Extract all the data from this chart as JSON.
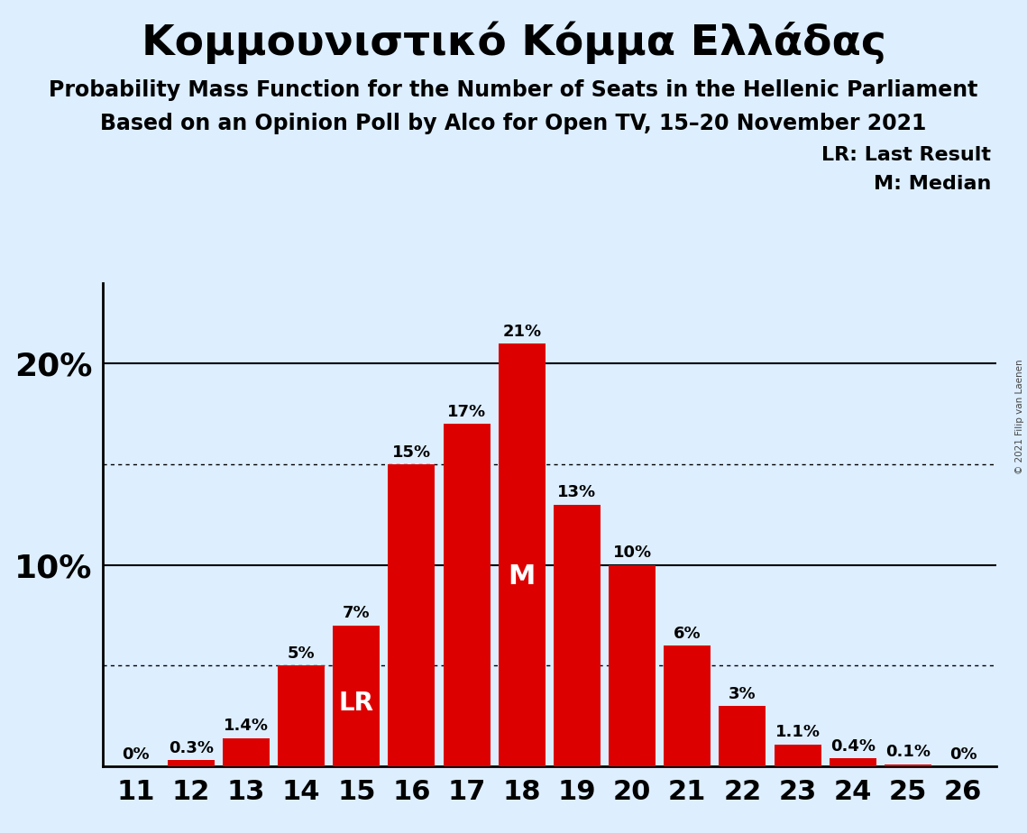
{
  "title": "Κομμουνιστικό Κόμμα Ελλάδας",
  "subtitle1": "Probability Mass Function for the Number of Seats in the Hellenic Parliament",
  "subtitle2": "Based on an Opinion Poll by Alco for Open TV, 15–20 November 2021",
  "copyright": "© 2021 Filip van Laenen",
  "seats": [
    11,
    12,
    13,
    14,
    15,
    16,
    17,
    18,
    19,
    20,
    21,
    22,
    23,
    24,
    25,
    26
  ],
  "probabilities": [
    0.0,
    0.3,
    1.4,
    5.0,
    7.0,
    15.0,
    17.0,
    21.0,
    13.0,
    10.0,
    6.0,
    3.0,
    1.1,
    0.4,
    0.1,
    0.0
  ],
  "bar_color": "#dd0000",
  "background_color": "#ddeeff",
  "text_color": "#000000",
  "bar_label_color_inside": "#ffffff",
  "bar_label_color_outside": "#000000",
  "lr_seat": 15,
  "median_seat": 18,
  "solid_gridlines": [
    10.0,
    20.0
  ],
  "dotted_gridlines": [
    5.0,
    15.0
  ],
  "ylim": [
    0,
    24
  ],
  "legend_lr": "LR: Last Result",
  "legend_m": "M: Median",
  "labels": [
    "0%",
    "0.3%",
    "1.4%",
    "5%",
    "7%",
    "15%",
    "17%",
    "21%",
    "13%",
    "10%",
    "6%",
    "3%",
    "1.1%",
    "0.4%",
    "0.1%",
    "0%"
  ]
}
